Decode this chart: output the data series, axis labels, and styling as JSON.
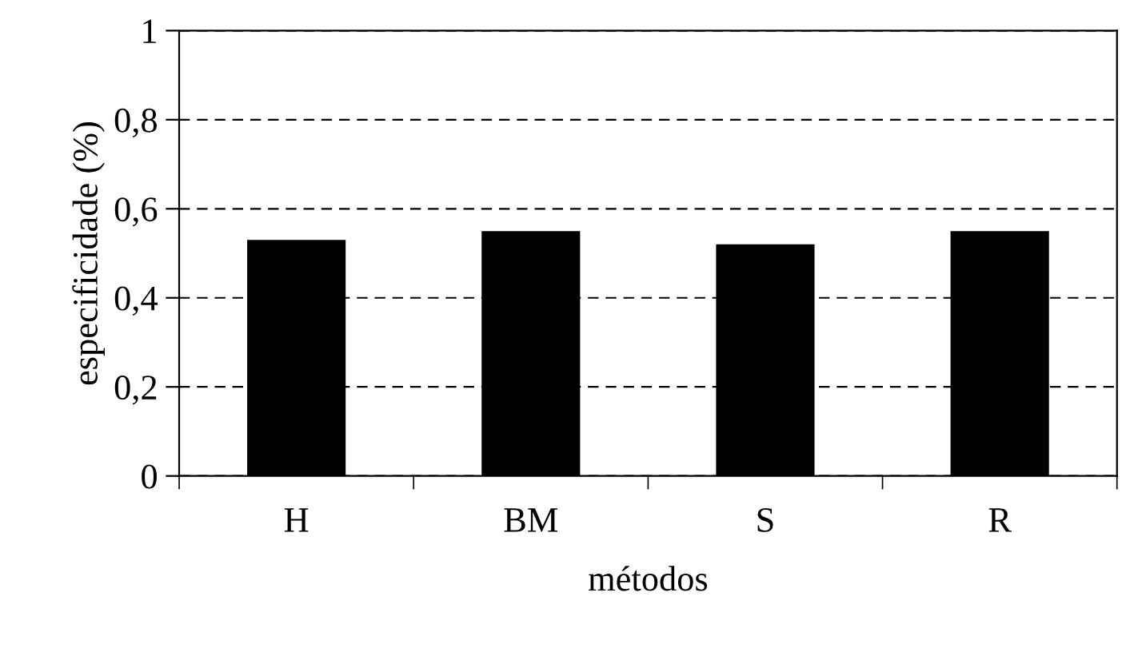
{
  "chart_data": {
    "type": "bar",
    "xlabel": "métodos",
    "ylabel": "especificidade (%)",
    "categories": [
      "H",
      "BM",
      "S",
      "R"
    ],
    "values": [
      0.53,
      0.55,
      0.52,
      0.55
    ],
    "color": "#000000",
    "ylim": [
      0,
      1
    ],
    "yticks": [
      {
        "value": 0,
        "label": "0"
      },
      {
        "value": 0.2,
        "label": "0,2"
      },
      {
        "value": 0.4,
        "label": "0,4"
      },
      {
        "value": 0.6,
        "label": "0,6"
      },
      {
        "value": 0.8,
        "label": "0,8"
      },
      {
        "value": 1,
        "label": "1"
      }
    ],
    "grid": "y"
  }
}
